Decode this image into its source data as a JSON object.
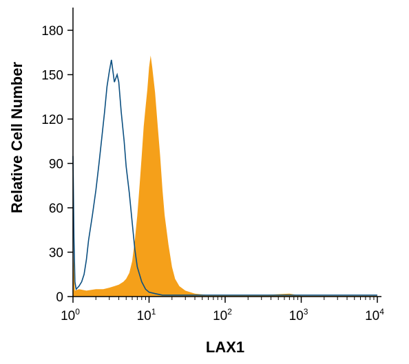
{
  "chart_data": {
    "type": "area",
    "xlabel": "LAX1",
    "ylabel": "Relative Cell Number",
    "x_scale": "log",
    "xlim": [
      1,
      10000
    ],
    "ylim": [
      0,
      180
    ],
    "x_ticks": [
      {
        "base": "10",
        "exp": "0",
        "value": 1
      },
      {
        "base": "10",
        "exp": "1",
        "value": 10
      },
      {
        "base": "10",
        "exp": "2",
        "value": 100
      },
      {
        "base": "10",
        "exp": "3",
        "value": 1000
      },
      {
        "base": "10",
        "exp": "4",
        "value": 10000
      }
    ],
    "y_ticks": [
      "0",
      "30",
      "60",
      "90",
      "120",
      "150",
      "180"
    ],
    "grid": false,
    "colors": {
      "filled": "#f5a01a",
      "outline": "#0b4f80",
      "axis": "#000000"
    },
    "series": [
      {
        "style": "filled",
        "points": [
          [
            1.0,
            0
          ],
          [
            1.02,
            28
          ],
          [
            1.06,
            4
          ],
          [
            1.2,
            5
          ],
          [
            1.5,
            4
          ],
          [
            2.0,
            5
          ],
          [
            2.5,
            5
          ],
          [
            3.0,
            6
          ],
          [
            3.5,
            7
          ],
          [
            4.0,
            8
          ],
          [
            4.6,
            10
          ],
          [
            5.0,
            12
          ],
          [
            5.5,
            16
          ],
          [
            6.0,
            24
          ],
          [
            6.5,
            38
          ],
          [
            7.0,
            55
          ],
          [
            7.5,
            75
          ],
          [
            8.0,
            95
          ],
          [
            8.5,
            115
          ],
          [
            9.0,
            128
          ],
          [
            9.5,
            140
          ],
          [
            10.0,
            155
          ],
          [
            10.5,
            163
          ],
          [
            11.0,
            155
          ],
          [
            12.0,
            138
          ],
          [
            13.0,
            115
          ],
          [
            14.0,
            95
          ],
          [
            15.0,
            72
          ],
          [
            16.0,
            55
          ],
          [
            18.0,
            35
          ],
          [
            20.0,
            20
          ],
          [
            22.0,
            12
          ],
          [
            25.0,
            7
          ],
          [
            30.0,
            4
          ],
          [
            40.0,
            2
          ],
          [
            60.0,
            1
          ],
          [
            100.0,
            1
          ],
          [
            300.0,
            1
          ],
          [
            700.0,
            2
          ],
          [
            1000.0,
            0.5
          ],
          [
            10000.0,
            0.5
          ]
        ]
      },
      {
        "style": "outline",
        "points": [
          [
            1.0,
            95
          ],
          [
            1.03,
            40
          ],
          [
            1.06,
            10
          ],
          [
            1.1,
            5
          ],
          [
            1.2,
            7
          ],
          [
            1.3,
            10
          ],
          [
            1.4,
            15
          ],
          [
            1.5,
            25
          ],
          [
            1.6,
            38
          ],
          [
            1.8,
            55
          ],
          [
            2.0,
            72
          ],
          [
            2.2,
            90
          ],
          [
            2.4,
            108
          ],
          [
            2.6,
            125
          ],
          [
            2.8,
            142
          ],
          [
            3.0,
            152
          ],
          [
            3.2,
            160
          ],
          [
            3.5,
            145
          ],
          [
            3.8,
            150
          ],
          [
            4.0,
            145
          ],
          [
            4.3,
            125
          ],
          [
            4.7,
            105
          ],
          [
            5.0,
            88
          ],
          [
            5.5,
            70
          ],
          [
            6.0,
            50
          ],
          [
            6.5,
            32
          ],
          [
            7.0,
            20
          ],
          [
            8.0,
            10
          ],
          [
            9.0,
            5
          ],
          [
            10.0,
            3
          ],
          [
            12.0,
            2
          ],
          [
            15.0,
            1
          ],
          [
            20.0,
            1
          ],
          [
            50.0,
            1
          ],
          [
            100.0,
            1
          ],
          [
            300.0,
            1
          ],
          [
            1000.0,
            1
          ],
          [
            10000.0,
            1
          ]
        ]
      }
    ]
  }
}
